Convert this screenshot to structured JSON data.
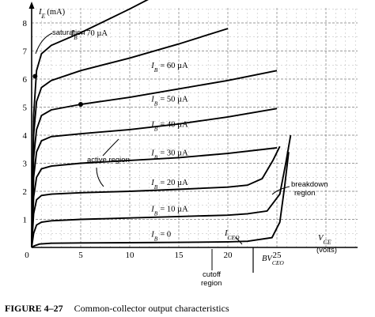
{
  "chart_data": {
    "type": "line",
    "ylabel_main": "I",
    "ylabel_sub": "E",
    "ylabel_unit": "(mA)",
    "xlabel_main": "V",
    "xlabel_sub": "CE",
    "xlabel_unit": "(volts)",
    "xlim": [
      0,
      30
    ],
    "ylim": [
      0,
      9
    ],
    "x_ticks": [
      "0",
      "5",
      "10",
      "15",
      "20",
      "25"
    ],
    "y_ticks": [
      "1",
      "2",
      "3",
      "4",
      "5",
      "6",
      "7",
      "8"
    ],
    "grid": true,
    "series": [
      {
        "name": "I_B = 0 µA",
        "label_main": "I",
        "label_sub": "B",
        "label_value": "= 0",
        "x": [
          0,
          0.3,
          0.8,
          2,
          5,
          10,
          15,
          20,
          22,
          24.5,
          25.3,
          25.8,
          26.2
        ],
        "y": [
          0,
          0.06,
          0.12,
          0.15,
          0.16,
          0.17,
          0.18,
          0.2,
          0.22,
          0.35,
          0.9,
          2.2,
          3.4
        ]
      },
      {
        "name": "I_B = 10 µA",
        "label_main": "I",
        "label_sub": "B",
        "label_value": "= 10 µA",
        "x": [
          0,
          0.2,
          0.5,
          1,
          2,
          5,
          10,
          15,
          20,
          22,
          24,
          25.3,
          25.9,
          26.4
        ],
        "y": [
          0,
          0.5,
          0.8,
          0.9,
          0.95,
          1.0,
          1.05,
          1.1,
          1.15,
          1.2,
          1.3,
          1.9,
          3.0,
          4.0
        ]
      },
      {
        "name": "I_B = 20 µA",
        "label_main": "I",
        "label_sub": "B",
        "label_value": "= 20 µA",
        "x": [
          0,
          0.2,
          0.5,
          1,
          2,
          5,
          10,
          15,
          20,
          22,
          23.5,
          24.6,
          25.3
        ],
        "y": [
          0,
          1.2,
          1.7,
          1.85,
          1.9,
          1.95,
          2.0,
          2.07,
          2.15,
          2.22,
          2.45,
          3.1,
          3.6
        ]
      },
      {
        "name": "I_B = 30 µA",
        "label_main": "I",
        "label_sub": "B",
        "label_value": "= 30 µA",
        "x": [
          0,
          0.2,
          0.5,
          1,
          2,
          5,
          10,
          15,
          20,
          25
        ],
        "y": [
          0,
          1.8,
          2.5,
          2.8,
          2.9,
          3.0,
          3.1,
          3.2,
          3.35,
          3.55
        ]
      },
      {
        "name": "I_B = 40 µA",
        "label_main": "I",
        "label_sub": "B",
        "label_value": "= 40 µA",
        "x": [
          0,
          0.2,
          0.5,
          1,
          2,
          5,
          10,
          15,
          20,
          25
        ],
        "y": [
          0,
          2.5,
          3.4,
          3.8,
          3.95,
          4.05,
          4.2,
          4.4,
          4.65,
          4.95
        ]
      },
      {
        "name": "I_B = 50 µA",
        "label_main": "I",
        "label_sub": "B",
        "label_value": "= 50 µA",
        "x": [
          0,
          0.2,
          0.5,
          1,
          2,
          5,
          10,
          15,
          20,
          25
        ],
        "y": [
          0,
          3.2,
          4.2,
          4.7,
          4.9,
          5.1,
          5.35,
          5.65,
          5.95,
          6.3
        ]
      },
      {
        "name": "I_B = 60 µA",
        "label_main": "I",
        "label_sub": "B",
        "label_value": "= 60 µA",
        "x": [
          0,
          0.2,
          0.5,
          1,
          2,
          5,
          10,
          15,
          20
        ],
        "y": [
          0,
          4.0,
          5.2,
          5.7,
          5.95,
          6.3,
          6.75,
          7.25,
          7.8
        ]
      },
      {
        "name": "I_B = 70 µA",
        "label_main": "I",
        "label_sub": "B",
        "label_value": "= 70 µA",
        "x": [
          0,
          0.2,
          0.5,
          1,
          2,
          5,
          10,
          15
        ],
        "y": [
          0,
          4.7,
          6.3,
          6.9,
          7.2,
          7.65,
          8.5,
          9.4
        ]
      }
    ],
    "marked_points": [
      {
        "x": 5,
        "y": 5.1
      },
      {
        "x": 0.35,
        "y": 6.1
      }
    ],
    "annotations": {
      "saturation": "saturation",
      "active_region": "active region",
      "breakdown_line1": "breakdown",
      "breakdown_line2": "region",
      "cutoff_line1": "cutoff",
      "cutoff_line2": "region",
      "iceo_main": "I",
      "iceo_sub": "CEO",
      "bvceo_main": "BV",
      "bvceo_sub": "CEO"
    }
  },
  "caption": {
    "number": "FIGURE 4–27",
    "title": "Common-collector output characteristics"
  }
}
